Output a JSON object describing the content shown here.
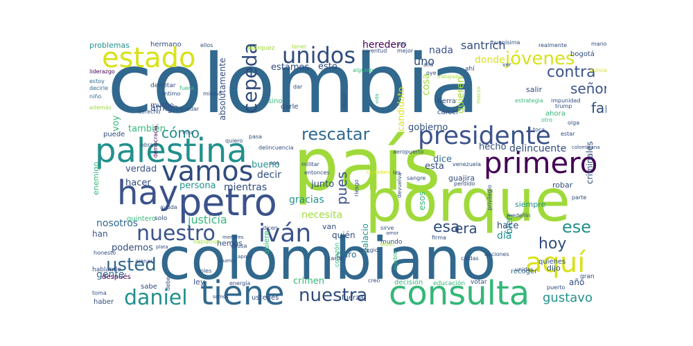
{
  "wordcloud": {
    "colors": {
      "navy": "#2f4b7c",
      "purple": "#482878",
      "dark_purple": "#440154",
      "teal": "#21908d",
      "green": "#35b779",
      "lime": "#9fda3a",
      "yellow": "#d8e219",
      "slate": "#31688e",
      "blue": "#3b528b"
    },
    "words": [
      {
        "t": "colombia",
        "c": "#31688e"
      },
      {
        "t": "país",
        "c": "#9fda3a"
      },
      {
        "t": "porque",
        "c": "#9fda3a"
      },
      {
        "t": "colombiano",
        "c": "#31688e"
      },
      {
        "t": "palestina",
        "c": "#21908d"
      },
      {
        "t": "petro",
        "c": "#3b528b"
      },
      {
        "t": "hay",
        "c": "#3b528b"
      },
      {
        "t": "estado",
        "c": "#d8e219"
      },
      {
        "t": "consulta",
        "c": "#35b779"
      },
      {
        "t": "tiene",
        "c": "#31688e"
      },
      {
        "t": "vamos",
        "c": "#2f4b7c"
      },
      {
        "t": "primero",
        "c": "#440154"
      },
      {
        "t": "presidente",
        "c": "#3b528b"
      },
      {
        "t": "aquí",
        "c": "#d8e219"
      },
      {
        "t": "nuestro",
        "c": "#3b528b"
      },
      {
        "t": "iván",
        "c": "#3b528b"
      },
      {
        "t": "unidos",
        "c": "#2f4b7c"
      },
      {
        "t": "cepeda",
        "c": "#2f4b7c"
      },
      {
        "t": "daniel",
        "c": "#21908d"
      },
      {
        "t": "tenemos",
        "c": "#31688e"
      },
      {
        "t": "usted",
        "c": "#31688e"
      },
      {
        "t": "nuestra",
        "c": "#2f4b7c"
      },
      {
        "t": "jóvenes",
        "c": "#d8e219"
      },
      {
        "t": "contra",
        "c": "#3b528b"
      },
      {
        "t": "rescatar",
        "c": "#31688e"
      },
      {
        "t": "hoy",
        "c": "#2f4b7c"
      },
      {
        "t": "ese",
        "c": "#21908d"
      },
      {
        "t": "era",
        "c": "#2f4b7c"
      },
      {
        "t": "esa",
        "c": "#2f4b7c"
      },
      {
        "t": "señor",
        "c": "#3b528b"
      },
      {
        "t": "farc",
        "c": "#2f4b7c"
      },
      {
        "t": "gustavo",
        "c": "#21908d"
      },
      {
        "t": "cómo",
        "c": "#21908d"
      },
      {
        "t": "pues",
        "c": "#3b528b"
      },
      {
        "t": "santrich",
        "c": "#2f4b7c"
      },
      {
        "t": "heredero",
        "c": "#440154"
      },
      {
        "t": "nada",
        "c": "#3b528b"
      },
      {
        "t": "donde",
        "c": "#d8e219"
      },
      {
        "t": "uno",
        "c": "#2f4b7c"
      },
      {
        "t": "cosa",
        "c": "#9fda3a"
      },
      {
        "t": "quieren",
        "c": "#9fda3a"
      },
      {
        "t": "candidato",
        "c": "#d8e219"
      },
      {
        "t": "estamos",
        "c": "#2f4b7c"
      },
      {
        "t": "esto",
        "c": "#2f4b7c"
      },
      {
        "t": "absolutamente",
        "c": "#2f4b7c"
      },
      {
        "t": "problemas",
        "c": "#21908d"
      },
      {
        "t": "hermano",
        "c": "#2f4b7c"
      },
      {
        "t": "amigo",
        "c": "#3b528b"
      },
      {
        "t": "también",
        "c": "#35b779"
      },
      {
        "t": "voy",
        "c": "#35b779"
      },
      {
        "t": "verdad",
        "c": "#3b528b"
      },
      {
        "t": "hacer",
        "c": "#2f4b7c"
      },
      {
        "t": "persona",
        "c": "#21908d"
      },
      {
        "t": "mientras",
        "c": "#2f4b7c"
      },
      {
        "t": "decir",
        "c": "#2f4b7c"
      },
      {
        "t": "junto",
        "c": "#2f4b7c"
      },
      {
        "t": "justicia",
        "c": "#35b779"
      },
      {
        "t": "nosotros",
        "c": "#31688e"
      },
      {
        "t": "necesita",
        "c": "#9fda3a"
      },
      {
        "t": "gracias",
        "c": "#21908d"
      },
      {
        "t": "bueno",
        "c": "#21908d"
      },
      {
        "t": "gobierno",
        "c": "#2f4b7c"
      },
      {
        "t": "dice",
        "c": "#31688e"
      },
      {
        "t": "hecho",
        "c": "#2f4b7c"
      },
      {
        "t": "delincuente",
        "c": "#2f4b7c"
      },
      {
        "t": "bien",
        "c": "#21908d"
      },
      {
        "t": "esta",
        "c": "#2f4b7c"
      },
      {
        "t": "hace",
        "c": "#2f4b7c"
      },
      {
        "t": "día",
        "c": "#21908d"
      },
      {
        "t": "podemos",
        "c": "#2f4b7c"
      },
      {
        "t": "han",
        "c": "#3b528b"
      },
      {
        "t": "gente",
        "c": "#31688e"
      },
      {
        "t": "quién",
        "c": "#2f4b7c"
      },
      {
        "t": "claro",
        "c": "#31688e"
      },
      {
        "t": "criminales",
        "c": "#2f4b7c"
      },
      {
        "t": "esos",
        "c": "#35b779"
      },
      {
        "t": "palacio",
        "c": "#21908d"
      },
      {
        "t": "crimen",
        "c": "#35b779"
      },
      {
        "t": "año",
        "c": "#2f4b7c"
      },
      {
        "t": "van",
        "c": "#2f4b7c"
      },
      {
        "t": "enemigo",
        "c": "#35b779"
      },
      {
        "t": "siempre",
        "c": "#21908d"
      },
      {
        "t": "guajira",
        "c": "#2f4b7c"
      },
      {
        "t": "robar",
        "c": "#2f4b7c"
      },
      {
        "t": "quiere",
        "c": "#35b779"
      },
      {
        "t": "dijo",
        "c": "#2f4b7c"
      },
      {
        "t": "ley",
        "c": "#3b528b"
      },
      {
        "t": "hemos",
        "c": "#2f4b7c"
      },
      {
        "t": "salir",
        "c": "#2f4b7c"
      },
      {
        "t": "tierra",
        "c": "#2f4b7c"
      },
      {
        "t": "cárcel",
        "c": "#2f4b7c"
      },
      {
        "t": "ahora",
        "c": "#35b779"
      },
      {
        "t": "mucho",
        "c": "#2f4b7c"
      },
      {
        "t": "puede",
        "c": "#2f4b7c"
      },
      {
        "t": "quienes",
        "c": "#2f4b7c"
      },
      {
        "t": "recoger",
        "c": "#31688e"
      },
      {
        "t": "ustedes",
        "c": "#2f4b7c"
      },
      {
        "t": "fuerza",
        "c": "#2f4b7c"
      },
      {
        "t": "decisión",
        "c": "#35b779"
      },
      {
        "t": "educación",
        "c": "#35b779"
      },
      {
        "t": "votar",
        "c": "#2f4b7c"
      },
      {
        "t": "sabe",
        "c": "#2f4b7c"
      },
      {
        "t": "después",
        "c": "#440154"
      },
      {
        "t": "haber",
        "c": "#2f4b7c"
      },
      {
        "t": "toma",
        "c": "#2f4b7c"
      },
      {
        "t": "hablando",
        "c": "#2f4b7c"
      },
      {
        "t": "honesto",
        "c": "#2f4b7c"
      },
      {
        "t": "quintero",
        "c": "#35b779"
      },
      {
        "t": "solo",
        "c": "#2f4b7c"
      },
      {
        "t": "ayuda",
        "c": "#2f4b7c"
      },
      {
        "t": "colegio",
        "c": "#2f4b7c"
      },
      {
        "t": "cartel",
        "c": "#2f4b7c"
      },
      {
        "t": "corazón",
        "c": "#35b779"
      },
      {
        "t": "mundo",
        "c": "#2f4b7c"
      },
      {
        "t": "pueblo",
        "c": "#35b779"
      },
      {
        "t": "unidas",
        "c": "#2f4b7c"
      },
      {
        "t": "gran",
        "c": "#2f4b7c"
      },
      {
        "t": "puerto",
        "c": "#2f4b7c"
      },
      {
        "t": "nunca",
        "c": "#d8e219"
      },
      {
        "t": "mano",
        "c": "#2f4b7c"
      },
      {
        "t": "realmente",
        "c": "#2f4b7c"
      },
      {
        "t": "bogotá",
        "c": "#2f4b7c"
      },
      {
        "t": "buenísima",
        "c": "#2f4b7c"
      },
      {
        "t": "tener",
        "c": "#9fda3a"
      },
      {
        "t": "márquez",
        "c": "#9fda3a"
      },
      {
        "t": "ellos",
        "c": "#2f4b7c"
      },
      {
        "t": "liderazgo",
        "c": "#440154"
      },
      {
        "t": "estoy",
        "c": "#31688e"
      },
      {
        "t": "decirle",
        "c": "#31688e"
      },
      {
        "t": "niño",
        "c": "#31688e"
      },
      {
        "t": "además",
        "c": "#9fda3a"
      },
      {
        "t": "derrotar",
        "c": "#2f4b7c"
      },
      {
        "t": "íntimo",
        "c": "#2f4b7c"
      },
      {
        "t": "fuera",
        "c": "#35b779"
      },
      {
        "t": "mismo",
        "c": "#2f4b7c"
      },
      {
        "t": "derecho",
        "c": "#2f4b7c"
      },
      {
        "t": "quedar",
        "c": "#2f4b7c"
      },
      {
        "t": "obra",
        "c": "#2f4b7c"
      },
      {
        "t": "visa",
        "c": "#2f4b7c"
      },
      {
        "t": "quiero",
        "c": "#2f4b7c"
      },
      {
        "t": "pasa",
        "c": "#2f4b7c"
      },
      {
        "t": "delincuencia",
        "c": "#2f4b7c"
      },
      {
        "t": "democracia",
        "c": "#440154"
      },
      {
        "t": "sea",
        "c": "#2f4b7c"
      },
      {
        "t": "dar",
        "c": "#2f4b7c"
      },
      {
        "t": "sino",
        "c": "#35b779"
      },
      {
        "t": "darle",
        "c": "#2f4b7c"
      },
      {
        "t": "seguir",
        "c": "#2f4b7c"
      },
      {
        "t": "vida",
        "c": "#35b779"
      },
      {
        "t": "juventud",
        "c": "#2f4b7c"
      },
      {
        "t": "mejor",
        "c": "#2f4b7c"
      },
      {
        "t": "alguien",
        "c": "#35b779"
      },
      {
        "t": "allá",
        "c": "#2f4b7c"
      },
      {
        "t": "oye",
        "c": "#2f4b7c"
      },
      {
        "t": "ahí",
        "c": "#2f4b7c"
      },
      {
        "t": "ver",
        "c": "#2f4b7c"
      },
      {
        "t": "vas",
        "c": "#2f4b7c"
      },
      {
        "t": "militar",
        "c": "#2f4b7c"
      },
      {
        "t": "entonces",
        "c": "#2f4b7c"
      },
      {
        "t": "les",
        "c": "#2f4b7c"
      },
      {
        "t": "aeropuerto",
        "c": "#2f4b7c"
      },
      {
        "t": "sangre",
        "c": "#2f4b7c"
      },
      {
        "t": "venezuela",
        "c": "#2f4b7c"
      },
      {
        "t": "ciudadano",
        "c": "#d8e219"
      },
      {
        "t": "riesgo",
        "c": "#2f4b7c"
      },
      {
        "t": "perdido",
        "c": "#2f4b7c"
      },
      {
        "t": "devuelva",
        "c": "#2f4b7c"
      },
      {
        "t": "estrategia",
        "c": "#35b779"
      },
      {
        "t": "impunidad",
        "c": "#2f4b7c"
      },
      {
        "t": "trump",
        "c": "#2f4b7c"
      },
      {
        "t": "otro",
        "c": "#35b779"
      },
      {
        "t": "toca",
        "c": "#2f4b7c"
      },
      {
        "t": "oiga",
        "c": "#2f4b7c"
      },
      {
        "t": "estar",
        "c": "#2f4b7c"
      },
      {
        "t": "colombiana",
        "c": "#2f4b7c"
      },
      {
        "t": "parte",
        "c": "#2f4b7c"
      },
      {
        "t": "medellín",
        "c": "#2f4b7c"
      },
      {
        "t": "privilegio",
        "c": "#2f4b7c"
      },
      {
        "t": "caldas",
        "c": "#2f4b7c"
      },
      {
        "t": "naciones",
        "c": "#2f4b7c"
      },
      {
        "t": "firma",
        "c": "#2f4b7c"
      },
      {
        "t": "sirve",
        "c": "#2f4b7c"
      },
      {
        "t": "amor",
        "c": "#2f4b7c"
      },
      {
        "t": "dicen",
        "c": "#2f4b7c"
      },
      {
        "t": "menores",
        "c": "#2f4b7c"
      },
      {
        "t": "causa",
        "c": "#2f4b7c"
      },
      {
        "t": "hablamos",
        "c": "#9fda3a"
      },
      {
        "t": "plata",
        "c": "#2f4b7c"
      },
      {
        "t": "ajenas",
        "c": "#2f4b7c"
      },
      {
        "t": "buena",
        "c": "#2f4b7c"
      },
      {
        "t": "soles",
        "c": "#2f4b7c"
      },
      {
        "t": "apoyo",
        "c": "#2f4b7c"
      },
      {
        "t": "energía",
        "c": "#2f4b7c"
      },
      {
        "t": "creo",
        "c": "#2f4b7c"
      },
      {
        "t": "debe",
        "c": "#2f4b7c"
      },
      {
        "t": "somos",
        "c": "#2f4b7c"
      },
      {
        "t": "trabajador",
        "c": "#9fda3a"
      },
      {
        "t": "marzo",
        "c": "#9fda3a"
      },
      {
        "t": "poder",
        "c": "#9fda3a"
      }
    ]
  }
}
